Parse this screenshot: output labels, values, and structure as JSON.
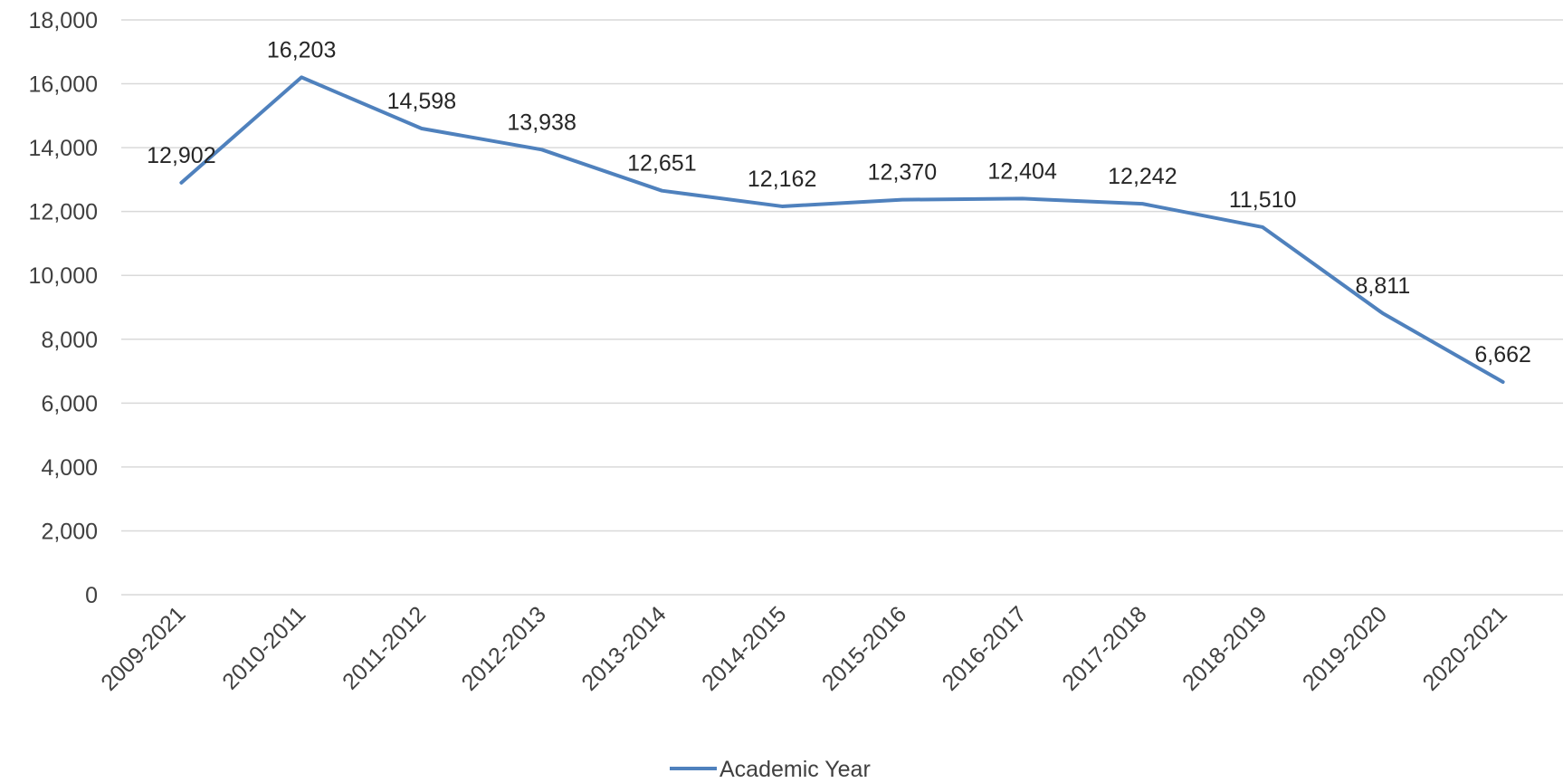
{
  "chart_data": {
    "type": "line",
    "categories": [
      "2009-2021",
      "2010-2011",
      "2011-2012",
      "2012-2013",
      "2013-2014",
      "2014-2015",
      "2015-2016",
      "2016-2017",
      "2017-2018",
      "2018-2019",
      "2019-2020",
      "2020-2021"
    ],
    "series": [
      {
        "name": "Academic Year",
        "values": [
          12902,
          16203,
          14598,
          13938,
          12651,
          12162,
          12370,
          12404,
          12242,
          11510,
          8811,
          6662
        ],
        "labels": [
          "12,902",
          "16,203",
          "14,598",
          "13,938",
          "12,651",
          "12,162",
          "12,370",
          "12,404",
          "12,242",
          "11,510",
          "8,811",
          "6,662"
        ]
      }
    ],
    "ylim": [
      0,
      18000
    ],
    "yticks": [
      0,
      2000,
      4000,
      6000,
      8000,
      10000,
      12000,
      14000,
      16000,
      18000
    ],
    "ytick_labels": [
      "0",
      "2,000",
      "4,000",
      "6,000",
      "8,000",
      "10,000",
      "12,000",
      "14,000",
      "16,000",
      "18,000"
    ],
    "grid": true,
    "legend_position": "bottom",
    "colors": {
      "series": "#4f81bd",
      "grid": "#d9d9d9"
    }
  }
}
